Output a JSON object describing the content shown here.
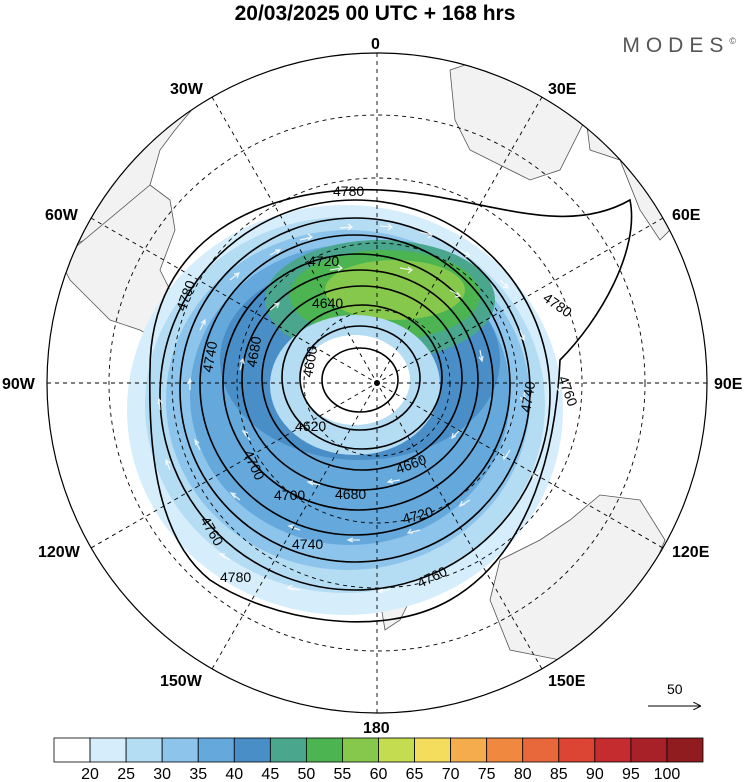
{
  "title": "20/03/2025  00 UTC  + 168 hrs",
  "brand": "MODES",
  "brand_mark": "©",
  "longitude_labels": {
    "top": "0",
    "deg30w": "30W",
    "deg30e": "30E",
    "deg60w": "60W",
    "deg60e": "60E",
    "deg90w": "90W",
    "deg90e": "90E",
    "deg120w": "120W",
    "deg120e": "120E",
    "deg150w": "150W",
    "deg150e": "150E",
    "bottom": "180"
  },
  "contour_labels": [
    "4780",
    "4720",
    "4640",
    "4600",
    "4620",
    "4660",
    "4680",
    "4700",
    "4720",
    "4740",
    "4760",
    "4780",
    "4760",
    "4740",
    "4700",
    "4680",
    "4740",
    "4780",
    "4780",
    "4760"
  ],
  "vector_reference": {
    "value": "50"
  },
  "colorbar": {
    "ticks": [
      "20",
      "25",
      "30",
      "35",
      "40",
      "45",
      "50",
      "55",
      "60",
      "65",
      "70",
      "75",
      "80",
      "85",
      "90",
      "95",
      "100"
    ],
    "colors": [
      "#ffffff",
      "#d6eefb",
      "#b4dcf3",
      "#8cc4eb",
      "#64a8dc",
      "#4a8ec8",
      "#4aa68c",
      "#4cb450",
      "#86c84c",
      "#c4dc50",
      "#f4dc5c",
      "#f4ac4c",
      "#f08840",
      "#e8683c",
      "#dc4434",
      "#c42c30",
      "#a82028",
      "#901c20"
    ]
  },
  "colors": {
    "land": "#f2f2f2",
    "coastline": "#555555",
    "contour": "#000000",
    "grid": "#000000"
  }
}
